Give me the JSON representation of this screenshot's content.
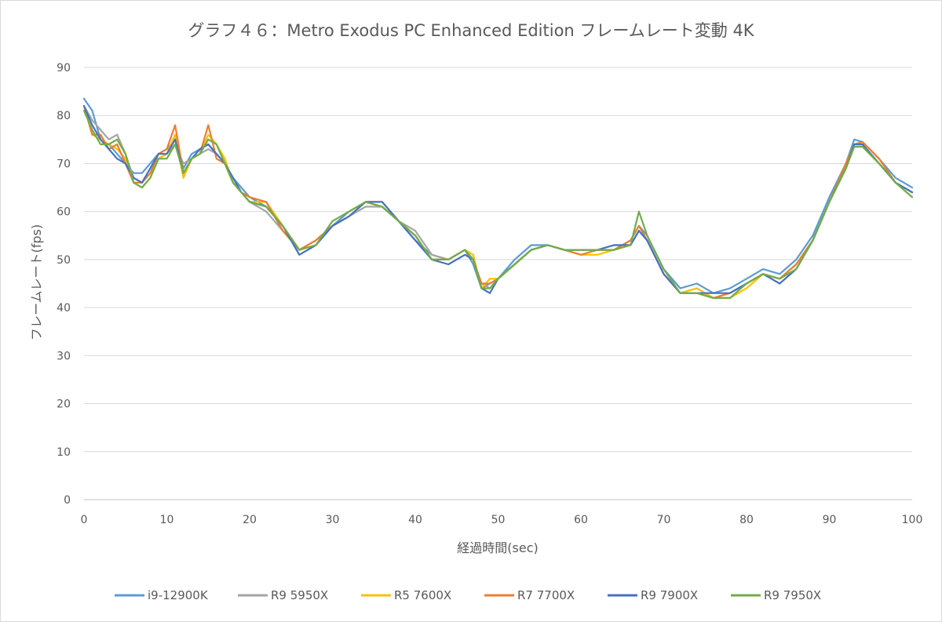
{
  "chart_data": {
    "type": "line",
    "title": "グラフ４６：Metro Exodus PC Enhanced Edition フレームレート変動 4K",
    "xlabel": "経過時間(sec)",
    "ylabel": "フレームレート(fps)",
    "xlim": [
      0,
      100
    ],
    "ylim": [
      0,
      90
    ],
    "x_ticks": [
      "0",
      "10",
      "20",
      "30",
      "40",
      "50",
      "60",
      "70",
      "80",
      "90",
      "100"
    ],
    "y_ticks": [
      "0",
      "10",
      "20",
      "30",
      "40",
      "50",
      "60",
      "70",
      "80",
      "90"
    ],
    "grid": "horizontal",
    "legend_position": "bottom",
    "x": [
      0,
      1,
      2,
      3,
      4,
      5,
      6,
      7,
      8,
      9,
      10,
      11,
      12,
      13,
      14,
      15,
      16,
      17,
      18,
      19,
      20,
      22,
      24,
      26,
      28,
      30,
      32,
      34,
      36,
      38,
      40,
      42,
      44,
      46,
      47,
      48,
      49,
      50,
      52,
      54,
      56,
      58,
      60,
      62,
      64,
      66,
      67,
      68,
      70,
      72,
      74,
      76,
      78,
      80,
      82,
      84,
      86,
      88,
      90,
      92,
      93,
      94,
      96,
      98,
      100
    ],
    "series": [
      {
        "name": "i9-12900K",
        "color": "#5b9bd5",
        "values": [
          83.5,
          81,
          75,
          74,
          72,
          70,
          68,
          68,
          70,
          72,
          73,
          75,
          69,
          72,
          73,
          74,
          72,
          70,
          67,
          65,
          63,
          61,
          57,
          52,
          54,
          57,
          60,
          62,
          61,
          58,
          54,
          51,
          50,
          52,
          49,
          44,
          45,
          46,
          50,
          53,
          53,
          52,
          52,
          52,
          52,
          54,
          57,
          55,
          48,
          44,
          45,
          43,
          44,
          46,
          48,
          47,
          50,
          55,
          63,
          70,
          75,
          74.5,
          71,
          67,
          65
        ]
      },
      {
        "name": "R9 5950X",
        "color": "#a5a5a5",
        "values": [
          82,
          79,
          77,
          75,
          76,
          72,
          67,
          66,
          68,
          71,
          72,
          74,
          70,
          71,
          72,
          73,
          72,
          70,
          66,
          64,
          62,
          60,
          56,
          52,
          54,
          57,
          59,
          61,
          61,
          58,
          56,
          51,
          50,
          52,
          50,
          45,
          44,
          46,
          49,
          52,
          53,
          52,
          52,
          52,
          53,
          53,
          56,
          54,
          47,
          43,
          44,
          42,
          43,
          45,
          47,
          46,
          49,
          54,
          62,
          69,
          73.5,
          73.5,
          70,
          66,
          64
        ]
      },
      {
        "name": "R5 7600X",
        "color": "#ffc000",
        "values": [
          82,
          76,
          75,
          74,
          73,
          71,
          66,
          65,
          67,
          71,
          72,
          76,
          67,
          71,
          72,
          76,
          74,
          71,
          66,
          64,
          62,
          62,
          57,
          52,
          53,
          57,
          59,
          62,
          62,
          58,
          55,
          50,
          50,
          52,
          51,
          44,
          46,
          46,
          49,
          52,
          53,
          52,
          51,
          51,
          52,
          53,
          56,
          54,
          47,
          43,
          44,
          42,
          42,
          44,
          47,
          46,
          49,
          54,
          62,
          69,
          74,
          74,
          70,
          66,
          63
        ]
      },
      {
        "name": "R7 7700X",
        "color": "#ed7d31",
        "values": [
          82,
          76,
          76,
          73,
          74,
          70,
          66,
          66,
          68,
          72,
          73,
          78,
          68,
          71,
          72,
          78,
          71,
          70,
          66,
          64,
          63,
          62,
          56,
          52,
          54,
          57,
          59,
          62,
          61,
          58,
          55,
          50,
          50,
          52,
          50,
          45,
          45,
          46,
          49,
          52,
          53,
          52,
          51,
          52,
          52,
          54,
          57,
          54,
          47,
          43,
          43,
          42,
          43,
          45,
          47,
          46,
          49,
          54,
          62,
          70,
          74,
          74.5,
          71,
          66,
          64
        ]
      },
      {
        "name": "R9 7900X",
        "color": "#4472c4",
        "values": [
          82,
          78,
          75,
          73,
          71,
          70,
          67,
          66,
          69,
          72,
          72,
          75,
          68,
          71,
          73,
          74,
          72,
          70,
          67,
          64,
          62,
          61,
          57,
          51,
          53,
          57,
          59,
          62,
          62,
          58,
          54,
          50,
          49,
          51,
          50,
          44,
          43,
          46,
          49,
          52,
          53,
          52,
          52,
          52,
          53,
          53,
          56,
          54,
          47,
          43,
          43,
          43,
          43,
          45,
          47,
          45,
          48,
          54,
          62,
          69,
          74,
          74,
          70,
          66,
          64
        ]
      },
      {
        "name": "R9 7950X",
        "color": "#70ad47",
        "values": [
          81,
          77,
          74,
          74,
          75,
          72,
          66,
          65,
          67,
          71,
          71,
          74,
          68,
          71,
          72,
          75,
          74,
          70,
          66,
          64,
          62,
          61,
          57,
          52,
          53,
          58,
          60,
          62,
          61,
          58,
          55,
          50,
          50,
          52,
          50,
          44,
          44,
          46,
          49,
          52,
          53,
          52,
          52,
          52,
          52,
          53,
          60,
          55,
          48,
          43,
          43,
          42,
          42,
          45,
          47,
          46,
          48,
          54,
          62,
          69,
          73.5,
          73.5,
          70,
          66,
          63
        ]
      }
    ]
  }
}
